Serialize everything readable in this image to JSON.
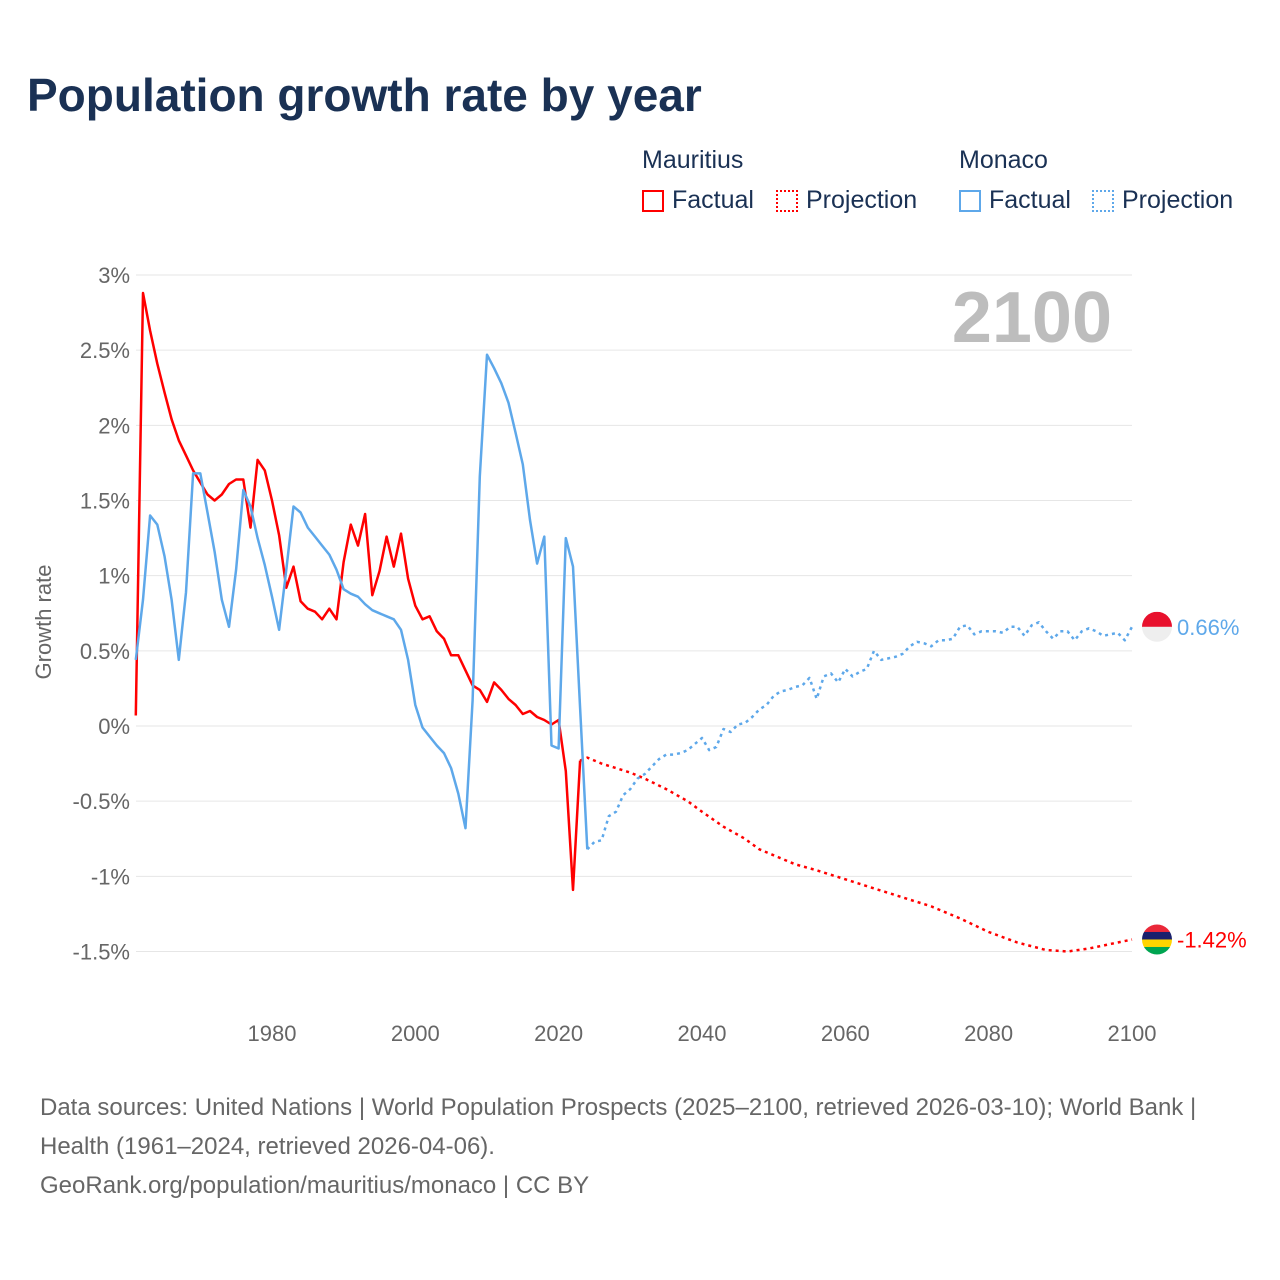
{
  "title": "Population growth rate by year",
  "legend": {
    "groups": [
      {
        "name": "Mauritius",
        "factual": "Factual",
        "projection": "Projection"
      },
      {
        "name": "Monaco",
        "factual": "Factual",
        "projection": "Projection"
      }
    ]
  },
  "footer": {
    "sources": "Data sources: United Nations | World Population Prospects (2025–2100, retrieved 2026-03-10); World Bank | Health (1961–2024, retrieved 2026-04-06).",
    "credit": "GeoRank.org/population/mauritius/monaco | CC BY"
  },
  "chart_data": {
    "type": "line",
    "title": "Population growth rate by year",
    "ylabel": "Growth rate",
    "xlabel": "",
    "year_label": "2100",
    "xlim": [
      1961,
      2100
    ],
    "ylim": [
      -1.8,
      3
    ],
    "x_ticks": [
      1980,
      2000,
      2020,
      2040,
      2060,
      2080,
      2100
    ],
    "y_ticks": [
      3,
      2.5,
      2,
      1.5,
      1,
      0.5,
      0,
      -0.5,
      -1,
      -1.5
    ],
    "y_tick_labels": [
      "3%",
      "2.5%",
      "2%",
      "1.5%",
      "1%",
      "0.5%",
      "0%",
      "-0.5%",
      "-1%",
      "-1.5%"
    ],
    "grid": true,
    "legend_position": "top-right",
    "series": [
      {
        "name": "Mauritius Factual",
        "color": "#ff0000",
        "dashed": false,
        "x_start": 1961,
        "values": [
          0.07,
          2.88,
          2.63,
          2.41,
          2.22,
          2.04,
          1.9,
          1.8,
          1.7,
          1.62,
          1.54,
          1.5,
          1.54,
          1.61,
          1.64,
          1.64,
          1.32,
          1.77,
          1.7,
          1.5,
          1.27,
          0.92,
          1.06,
          0.83,
          0.78,
          0.76,
          0.71,
          0.78,
          0.71,
          1.09,
          1.34,
          1.2,
          1.41,
          0.87,
          1.03,
          1.26,
          1.06,
          1.28,
          0.98,
          0.8,
          0.71,
          0.73,
          0.63,
          0.58,
          0.47,
          0.47,
          0.37,
          0.27,
          0.24,
          0.16,
          0.29,
          0.24,
          0.18,
          0.14,
          0.08,
          0.1,
          0.06,
          0.04,
          0.01,
          0.04,
          -0.3,
          -1.09,
          -0.23
        ]
      },
      {
        "name": "Mauritius Projection",
        "color": "#ff0000",
        "dashed": true,
        "x": [
          2023,
          2024,
          2026,
          2028,
          2030,
          2032,
          2035,
          2038,
          2040,
          2043,
          2046,
          2048,
          2050,
          2053,
          2056,
          2060,
          2064,
          2068,
          2072,
          2076,
          2080,
          2084,
          2088,
          2091,
          2094,
          2097,
          2100
        ],
        "values": [
          -0.23,
          -0.21,
          -0.25,
          -0.28,
          -0.31,
          -0.35,
          -0.42,
          -0.5,
          -0.57,
          -0.67,
          -0.75,
          -0.82,
          -0.86,
          -0.92,
          -0.96,
          -1.02,
          -1.08,
          -1.14,
          -1.2,
          -1.28,
          -1.37,
          -1.44,
          -1.49,
          -1.5,
          -1.48,
          -1.45,
          -1.42
        ]
      },
      {
        "name": "Monaco Factual",
        "color": "#5ea8ea",
        "dashed": false,
        "x_start": 1961,
        "values": [
          0.44,
          0.84,
          1.4,
          1.34,
          1.13,
          0.84,
          0.44,
          0.89,
          1.68,
          1.68,
          1.42,
          1.16,
          0.84,
          0.66,
          1.04,
          1.57,
          1.46,
          1.25,
          1.07,
          0.86,
          0.64,
          1.04,
          1.46,
          1.42,
          1.32,
          1.26,
          1.2,
          1.14,
          1.04,
          0.91,
          0.88,
          0.86,
          0.81,
          0.77,
          0.75,
          0.73,
          0.71,
          0.64,
          0.44,
          0.14,
          -0.01,
          -0.07,
          -0.13,
          -0.18,
          -0.28,
          -0.45,
          -0.68,
          0.17,
          1.66,
          2.47,
          2.38,
          2.28,
          2.15,
          1.95,
          1.74,
          1.37,
          1.08,
          1.26,
          -0.13,
          -0.15,
          1.25,
          1.06,
          0.12,
          -0.82
        ]
      },
      {
        "name": "Monaco Projection",
        "color": "#5ea8ea",
        "dashed": true,
        "x_start": 2024,
        "values": [
          -0.82,
          -0.77,
          -0.76,
          -0.6,
          -0.57,
          -0.46,
          -0.42,
          -0.35,
          -0.32,
          -0.27,
          -0.22,
          -0.19,
          -0.19,
          -0.18,
          -0.16,
          -0.12,
          -0.08,
          -0.16,
          -0.14,
          -0.02,
          -0.04,
          0.01,
          0.02,
          0.06,
          0.11,
          0.14,
          0.2,
          0.23,
          0.24,
          0.26,
          0.27,
          0.32,
          0.18,
          0.33,
          0.35,
          0.29,
          0.38,
          0.33,
          0.36,
          0.38,
          0.5,
          0.44,
          0.45,
          0.46,
          0.48,
          0.53,
          0.56,
          0.55,
          0.53,
          0.57,
          0.57,
          0.58,
          0.66,
          0.67,
          0.61,
          0.63,
          0.63,
          0.63,
          0.62,
          0.66,
          0.66,
          0.6,
          0.67,
          0.69,
          0.63,
          0.58,
          0.63,
          0.63,
          0.57,
          0.63,
          0.65,
          0.63,
          0.6,
          0.61,
          0.62,
          0.57,
          0.66
        ]
      }
    ],
    "end_labels": [
      {
        "country": "Monaco",
        "value": 0.66,
        "text": "0.66%",
        "color": "#5ea8ea"
      },
      {
        "country": "Mauritius",
        "value": -1.42,
        "text": "-1.42%",
        "color": "#ff0000"
      }
    ]
  }
}
